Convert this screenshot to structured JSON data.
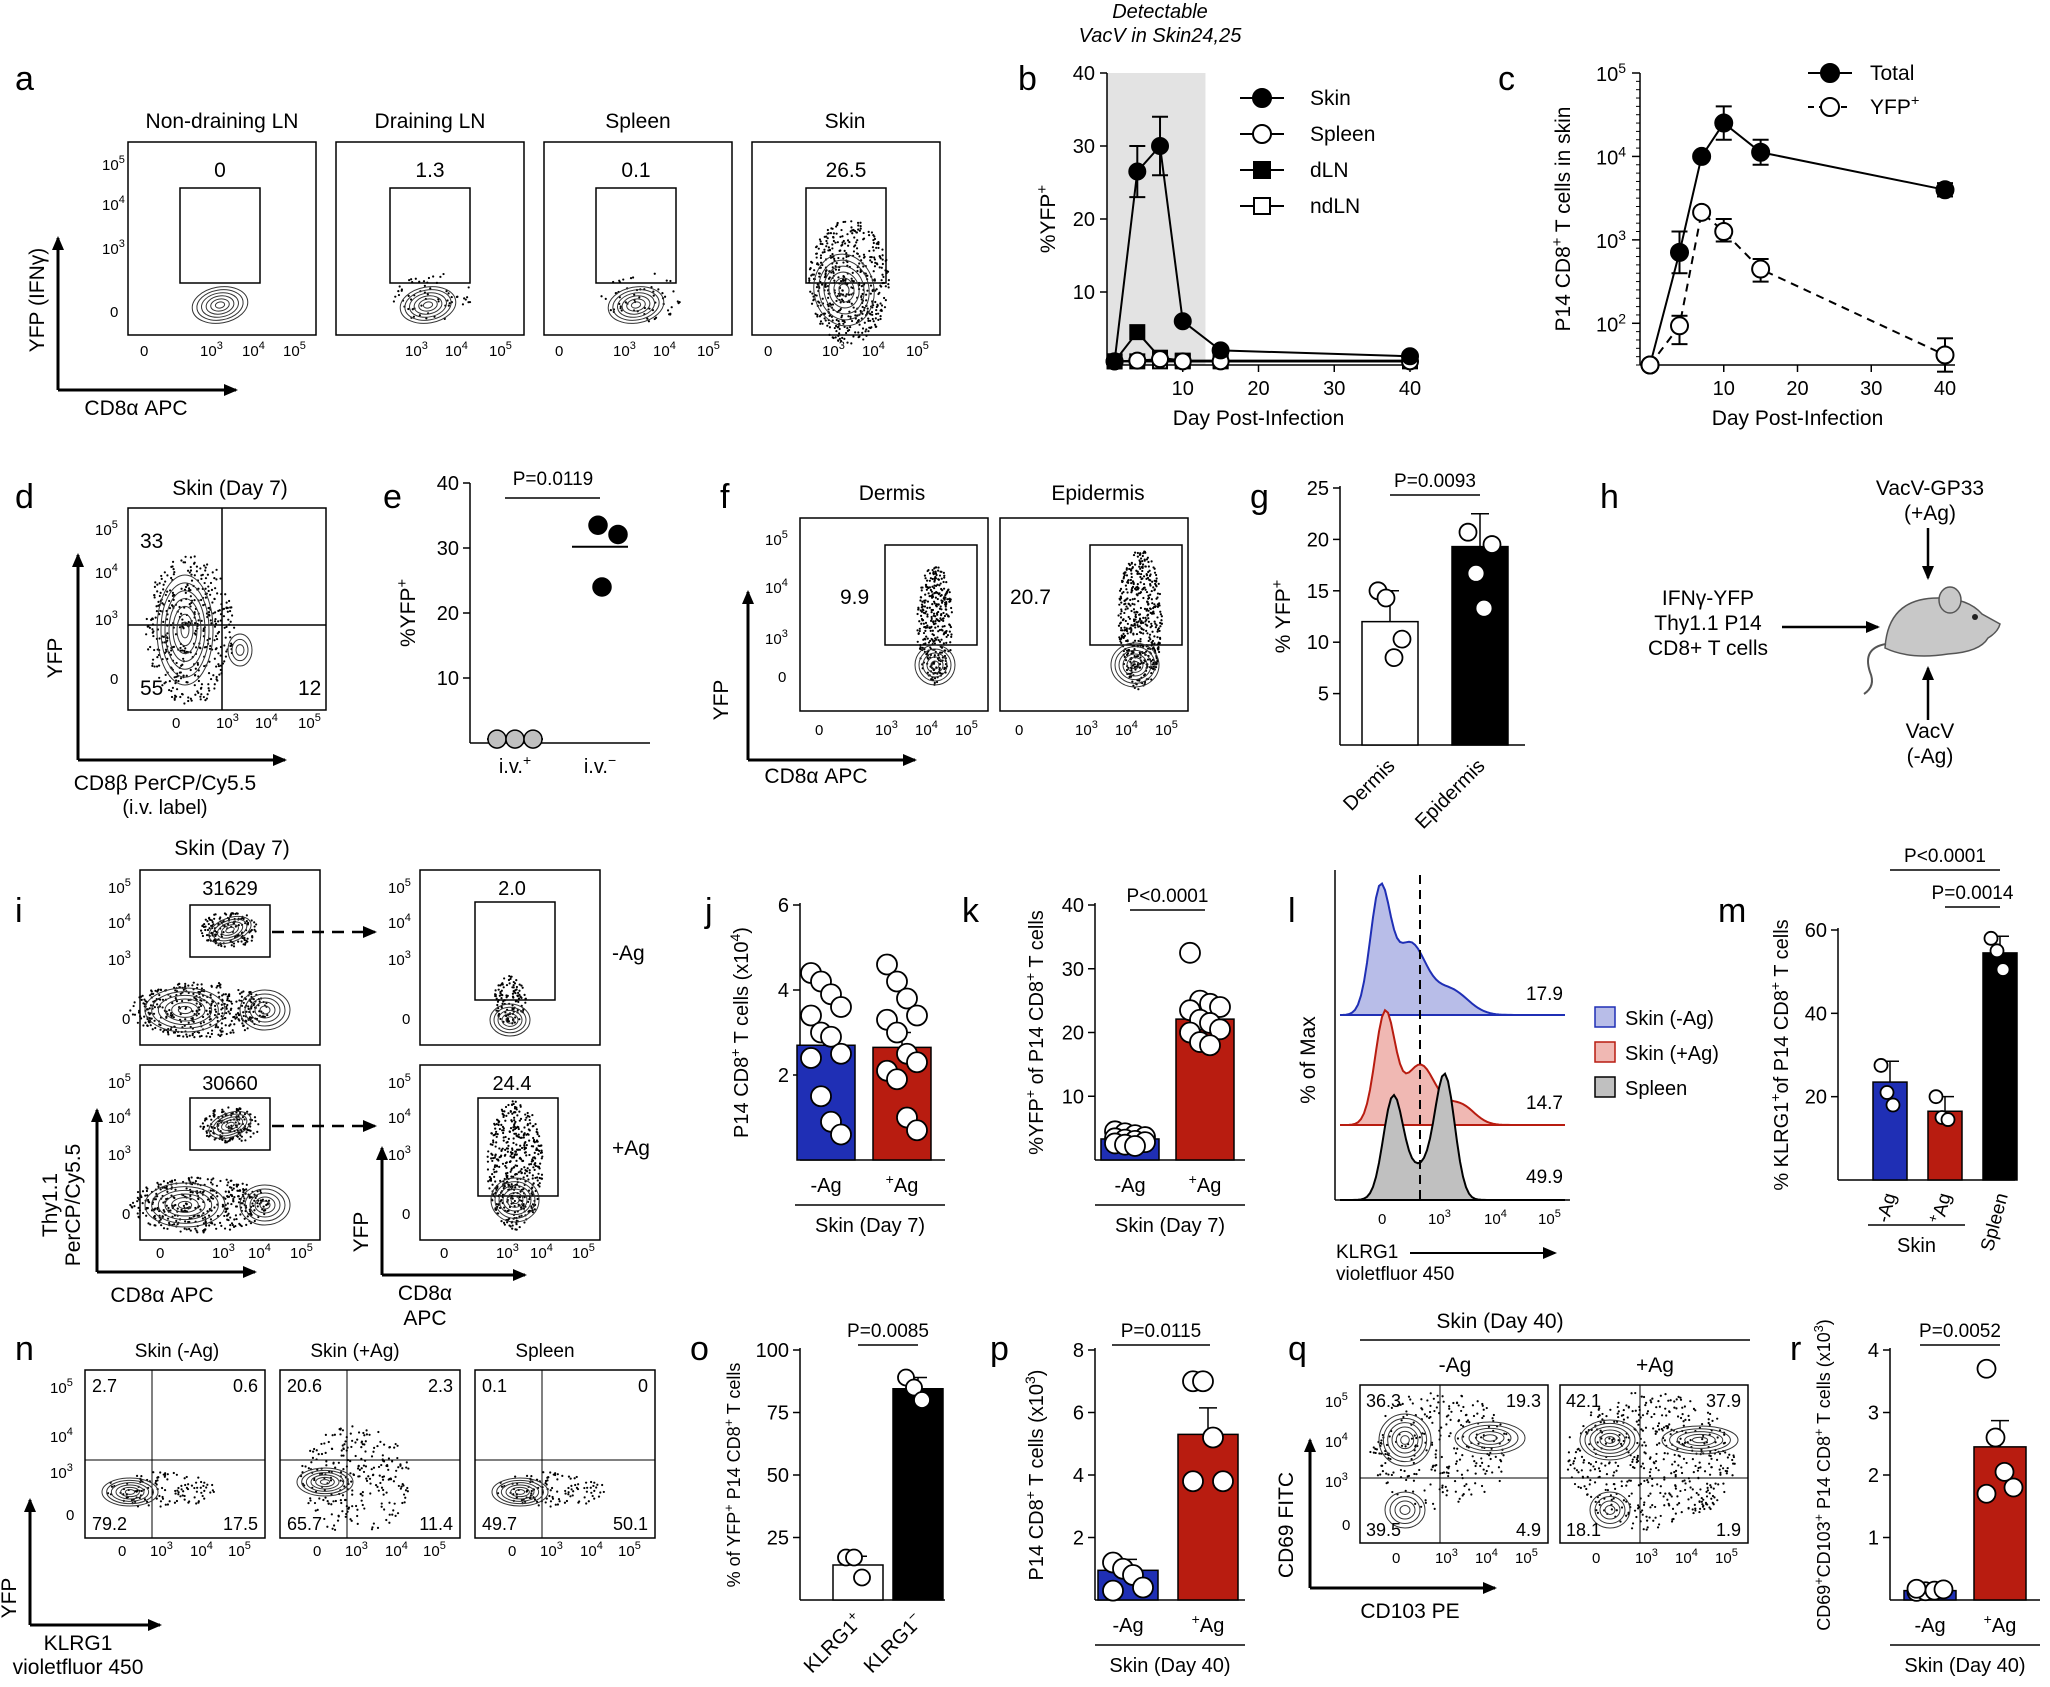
{
  "colors": {
    "blue": "#1f2fb5",
    "red": "#b81c10",
    "black": "#000000",
    "grey": "#c0c0c0",
    "shade": "#e3e3e3"
  },
  "panels": {
    "a": {
      "letter": "a",
      "titles": [
        "Non-draining LN",
        "Draining LN",
        "Spleen",
        "Skin"
      ],
      "gates": [
        "0",
        "1.3",
        "0.1",
        "26.5"
      ],
      "ylabel": "YFP (IFNγ)",
      "xlabel": "CD8α APC"
    },
    "b": {
      "letter": "b",
      "annotation_1": "Detectable",
      "annotation_2": "VacV in Skin24,25"
    },
    "c": {
      "letter": "c"
    },
    "d": {
      "letter": "d",
      "title": "Skin (Day 7)",
      "quadrants": [
        "33",
        "55",
        "12"
      ],
      "ylabel": "YFP",
      "xlabel": "CD8β PerCP/Cy5.5",
      "xlabel2": "(i.v. label)"
    },
    "e": {
      "letter": "e"
    },
    "f": {
      "letter": "f",
      "titles": [
        "Dermis",
        "Epidermis"
      ],
      "gates": [
        "9.9",
        "20.7"
      ],
      "ylabel": "YFP",
      "xlabel": "CD8α APC"
    },
    "g": {
      "letter": "g"
    },
    "h": {
      "letter": "h",
      "top_1": "VacV-GP33",
      "top_2": "(+Ag)",
      "left_1": "IFNγ-YFP",
      "left_2": "Thy1.1 P14",
      "left_3": "CD8+ T cells",
      "bottom_1": "VacV",
      "bottom_2": "(-Ag)"
    },
    "i": {
      "letter": "i",
      "title": "Skin (Day 7)",
      "counts": [
        "31629",
        "30660"
      ],
      "gates": [
        "2.0",
        "24.4"
      ],
      "conditions": [
        "-Ag",
        "+Ag"
      ],
      "ylabel_1": "Thy1.1",
      "ylabel_2": "PerCP/Cy5.5",
      "xlabel": "CD8α APC",
      "ylabel_r": "YFP",
      "xlabel_r1": "CD8α",
      "xlabel_r2": "APC"
    },
    "j": {
      "letter": "j"
    },
    "k": {
      "letter": "k"
    },
    "l": {
      "letter": "l",
      "ylabel": "% of Max",
      "xlabel_1": "KLRG1",
      "xlabel_2": "violetfluor 450",
      "values": [
        "17.9",
        "14.7",
        "49.9"
      ],
      "legend": [
        "Skin (-Ag)",
        "Skin (+Ag)",
        "Spleen"
      ]
    },
    "m": {
      "letter": "m"
    },
    "n": {
      "letter": "n",
      "titles": [
        "Skin (-Ag)",
        "Skin (+Ag)",
        "Spleen"
      ],
      "quadrants": [
        [
          "2.7",
          "0.6",
          "79.2",
          "17.5"
        ],
        [
          "20.6",
          "2.3",
          "65.7",
          "11.4"
        ],
        [
          "0.1",
          "0",
          "49.7",
          "50.1"
        ]
      ],
      "ylabel": "YFP",
      "xlabel_1": "KLRG1",
      "xlabel_2": "violetfluor 450"
    },
    "o": {
      "letter": "o"
    },
    "p": {
      "letter": "p"
    },
    "q": {
      "letter": "q",
      "title": "Skin (Day 40)",
      "titles": [
        "-Ag",
        "+Ag"
      ],
      "quadrants": [
        [
          "36.3",
          "19.3",
          "39.5",
          "4.9"
        ],
        [
          "42.1",
          "37.9",
          "18.1",
          "1.9"
        ]
      ],
      "ylabel": "CD69 FITC",
      "xlabel": "CD103 PE"
    },
    "r": {
      "letter": "r"
    }
  },
  "chart_data": [
    {
      "id": "b",
      "type": "line",
      "xlabel": "Day Post-Infection",
      "ylabel": "%YFP+",
      "xlim": [
        0,
        40
      ],
      "ylim": [
        0,
        40
      ],
      "xticks": [
        10,
        20,
        30,
        40
      ],
      "yticks": [
        10,
        20,
        30,
        40
      ],
      "shaded_region": [
        0,
        13
      ],
      "legend_position": "top-right",
      "x": [
        1,
        4,
        7,
        10,
        15,
        40
      ],
      "series": [
        {
          "name": "Skin",
          "marker": "filled-circle",
          "values": [
            0.5,
            26.5,
            30,
            6,
            2,
            1.2
          ]
        },
        {
          "name": "Spleen",
          "marker": "open-circle",
          "values": [
            0.5,
            0.6,
            0.8,
            0.5,
            0.5,
            0.5
          ]
        },
        {
          "name": "dLN",
          "marker": "filled-square",
          "values": [
            0.5,
            4.5,
            1,
            0.6,
            0.6,
            0.6
          ]
        },
        {
          "name": "ndLN",
          "marker": "open-square",
          "values": [
            0.5,
            0.5,
            0.5,
            0.5,
            0.5,
            0.5
          ]
        }
      ]
    },
    {
      "id": "c",
      "type": "line",
      "xlabel": "Day Post-Infection",
      "ylabel": "P14 CD8+ T cells in skin",
      "xlim": [
        0,
        40
      ],
      "ylim": [
        1.5,
        5
      ],
      "scale": "log",
      "xticks": [
        10,
        20,
        30,
        40
      ],
      "yticks": [
        "10^2",
        "10^3",
        "10^4",
        "10^5"
      ],
      "legend_position": "top-right",
      "series": [
        {
          "name": "Total",
          "marker": "filled-circle",
          "x": [
            0,
            4,
            7,
            10,
            15,
            40
          ],
          "log10_values": [
            1.5,
            2.85,
            4.0,
            4.4,
            4.05,
            3.6
          ]
        },
        {
          "name": "YFP+",
          "marker": "open-circle",
          "dashed": true,
          "x": [
            0,
            4,
            7,
            10,
            15,
            40
          ],
          "log10_values": [
            1.5,
            1.97,
            3.33,
            3.1,
            2.65,
            1.62
          ]
        }
      ]
    },
    {
      "id": "e",
      "type": "scatter",
      "ylabel": "%YFP+",
      "ylim": [
        0,
        40
      ],
      "yticks": [
        10,
        20,
        30,
        40
      ],
      "categories": [
        "i.v.+",
        "i.v.−"
      ],
      "pvalue": "P=0.0119",
      "points": [
        [
          0,
          0.6
        ],
        [
          0,
          0.6
        ],
        [
          0,
          0.6
        ],
        [
          1,
          33.5
        ],
        [
          1,
          33
        ],
        [
          1,
          24
        ]
      ],
      "means": [
        0.6,
        30.2
      ]
    },
    {
      "id": "g",
      "type": "bar",
      "ylabel": "% YFP+",
      "ylim": [
        0,
        25
      ],
      "yticks": [
        5,
        10,
        15,
        20,
        25
      ],
      "categories": [
        "Dermis",
        "Epidermis"
      ],
      "values": [
        12,
        19.3
      ],
      "errors": [
        3,
        3.2
      ],
      "pvalue": "P=0.0093",
      "points": [
        [
          15,
          14.3,
          8.5,
          10.3
        ],
        [
          20.7,
          16.7,
          13.3,
          19.5
        ]
      ]
    },
    {
      "id": "j",
      "type": "bar",
      "ylabel": "P14 CD8+ T cells (x104)",
      "ylim": [
        0,
        6
      ],
      "yticks": [
        2,
        4,
        6
      ],
      "categories": [
        "-Ag",
        "+Ag"
      ],
      "group_label": "Skin (Day 7)",
      "values": [
        2.7,
        2.65
      ],
      "errors": [
        0.35,
        0.35
      ],
      "points": [
        [
          4.4,
          4.2,
          3.9,
          3.6,
          3.4,
          3.0,
          2.9,
          2.5,
          2.4,
          1.5,
          0.9,
          0.6
        ],
        [
          4.6,
          4.2,
          3.8,
          3.4,
          3.3,
          3.0,
          2.5,
          2.3,
          2.1,
          1.9,
          1.0,
          0.7
        ]
      ]
    },
    {
      "id": "k",
      "type": "bar",
      "ylabel": "%YFP+ of P14 CD8+ T cells",
      "ylim": [
        0,
        40
      ],
      "yticks": [
        10,
        20,
        30,
        40
      ],
      "categories": [
        "-Ag",
        "+Ag"
      ],
      "group_label": "Skin (Day 7)",
      "values": [
        3.3,
        22.1
      ],
      "errors": [
        0.4,
        1.3
      ],
      "pvalue": "P<0.0001",
      "points": [
        [
          4.5,
          4.2,
          3.9,
          3.6,
          3.4,
          3.2,
          3.0,
          2.8,
          2.6,
          2.4,
          2.2
        ],
        [
          32.5,
          25,
          24.5,
          24,
          23.5,
          22,
          21.5,
          20.5,
          20,
          18.5,
          18
        ]
      ]
    },
    {
      "id": "l",
      "type": "histogram",
      "xlabel": "KLRG1 violetfluor 450",
      "ylabel": "% of Max",
      "series": [
        {
          "name": "Skin (-Ag)",
          "value": 17.9
        },
        {
          "name": "Skin (+Ag)",
          "value": 14.7
        },
        {
          "name": "Spleen",
          "value": 49.9
        }
      ]
    },
    {
      "id": "m",
      "type": "bar",
      "ylabel": "% KLRG1+of P14 CD8+ T cells",
      "ylim": [
        0,
        60
      ],
      "yticks": [
        20,
        40,
        60
      ],
      "categories": [
        "-Ag",
        "+Ag",
        "Spleen"
      ],
      "group_label": "Skin",
      "values": [
        23.5,
        16.5,
        54.5
      ],
      "errors": [
        5,
        3.5,
        4
      ],
      "pvalues": [
        "P<0.0001",
        "P=0.0014"
      ],
      "points": [
        [
          27.5,
          21,
          18
        ],
        [
          20,
          15,
          14.5
        ],
        [
          58,
          55,
          50.5
        ]
      ]
    },
    {
      "id": "o",
      "type": "bar",
      "ylabel": "% of YFP+ P14 CD8+ T cells",
      "ylim": [
        0,
        100
      ],
      "yticks": [
        25,
        50,
        75,
        100
      ],
      "categories": [
        "KLRG1+",
        "KLRG1−"
      ],
      "values": [
        14,
        84.5
      ],
      "errors": [
        3.5,
        4.5
      ],
      "pvalue": "P=0.0085",
      "points": [
        [
          17,
          17,
          9
        ],
        [
          89,
          85,
          80
        ]
      ]
    },
    {
      "id": "p",
      "type": "bar",
      "ylabel": "P14 CD8+ T cells (x103)",
      "ylim": [
        0,
        8
      ],
      "yticks": [
        2,
        4,
        6,
        8
      ],
      "categories": [
        "-Ag",
        "+Ag"
      ],
      "group_label": "Skin (Day 40)",
      "values": [
        0.95,
        5.3
      ],
      "errors": [
        0.35,
        0.85
      ],
      "pvalue": "P=0.0115",
      "points": [
        [
          1.2,
          1.0,
          0.8,
          0.4,
          0.3
        ],
        [
          7.0,
          7.0,
          5.2,
          3.8,
          3.8
        ]
      ]
    },
    {
      "id": "r",
      "type": "bar",
      "ylabel": "CD69+CD103+ P14 CD8+ T cells (x103)",
      "ylim": [
        0,
        4
      ],
      "yticks": [
        1,
        2,
        3,
        4
      ],
      "categories": [
        "-Ag",
        "+Ag"
      ],
      "group_label": "Skin (Day 40)",
      "values": [
        0.15,
        2.45
      ],
      "errors": [
        0.02,
        0.42
      ],
      "pvalue": "P=0.0052",
      "points": [
        [
          0.13,
          0.14,
          0.15,
          0.17,
          0.18
        ],
        [
          3.7,
          2.6,
          2.05,
          1.8,
          1.7
        ]
      ]
    }
  ]
}
